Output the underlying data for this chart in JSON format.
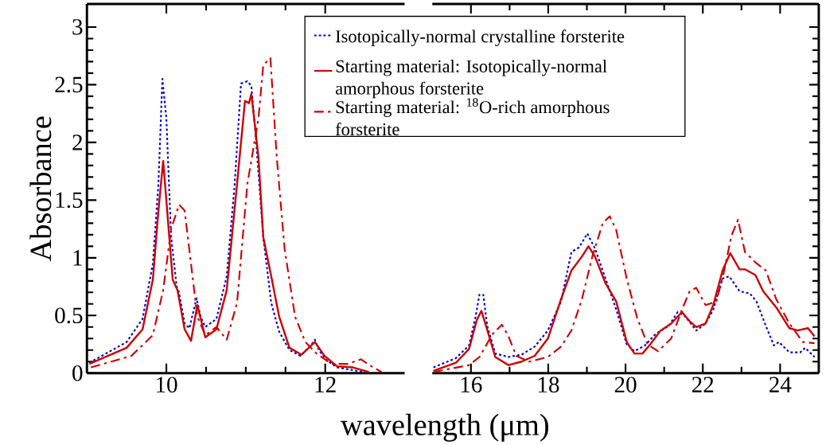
{
  "chart_data": [
    {
      "type": "line",
      "ylabel": "Absorbance",
      "xlim": [
        9,
        13
      ],
      "ylim": [
        0,
        3.2
      ],
      "xticks": [
        10,
        12
      ],
      "yticks": [
        0,
        0.5,
        1,
        1.5,
        2,
        2.5,
        3
      ],
      "series": [
        {
          "color": "#0000cc",
          "line_style": "dotted",
          "x": [
            9.03,
            9.5,
            9.7,
            9.83,
            9.9,
            9.95,
            10.0,
            10.06,
            10.13,
            10.16,
            10.23,
            10.29,
            10.38,
            10.43,
            10.49,
            10.63,
            10.76,
            10.86,
            10.94,
            11.02,
            11.07,
            11.12,
            11.22,
            11.32,
            11.42,
            11.55,
            11.69,
            11.82,
            11.87,
            11.92,
            12.02,
            12.15,
            12.32,
            12.48
          ],
          "values": [
            0.09,
            0.27,
            0.47,
            0.95,
            1.64,
            2.55,
            2.21,
            1.18,
            0.75,
            0.7,
            0.43,
            0.39,
            0.65,
            0.49,
            0.4,
            0.47,
            0.84,
            1.64,
            2.51,
            2.53,
            2.49,
            2.1,
            1.18,
            0.61,
            0.36,
            0.2,
            0.15,
            0.24,
            0.29,
            0.2,
            0.11,
            0.05,
            0.03,
            0.01
          ]
        },
        {
          "color": "#cc0000",
          "line_style": "solid",
          "x": [
            9.03,
            9.5,
            9.7,
            9.83,
            9.9,
            9.96,
            10.01,
            10.08,
            10.14,
            10.23,
            10.31,
            10.39,
            10.49,
            10.63,
            10.76,
            10.89,
            10.99,
            11.04,
            11.07,
            11.16,
            11.22,
            11.32,
            11.42,
            11.55,
            11.7,
            11.87,
            11.99,
            12.15,
            12.35,
            12.55
          ],
          "values": [
            0.08,
            0.22,
            0.38,
            0.81,
            1.41,
            1.84,
            1.41,
            0.81,
            0.72,
            0.38,
            0.28,
            0.59,
            0.31,
            0.38,
            0.72,
            1.64,
            2.36,
            2.34,
            2.42,
            1.87,
            1.18,
            0.84,
            0.49,
            0.22,
            0.16,
            0.27,
            0.15,
            0.06,
            0.05,
            0.01
          ]
        },
        {
          "color": "#cc0000",
          "line_style": "dashed",
          "x": [
            9.05,
            9.56,
            9.83,
            9.96,
            10.06,
            10.16,
            10.23,
            10.31,
            10.39,
            10.49,
            10.63,
            10.76,
            10.89,
            11.02,
            11.16,
            11.22,
            11.31,
            11.39,
            11.49,
            11.62,
            11.75,
            11.89,
            12.08,
            12.28,
            12.45,
            12.58,
            12.71
          ],
          "values": [
            0.05,
            0.15,
            0.33,
            0.72,
            1.25,
            1.46,
            1.41,
            0.95,
            0.49,
            0.33,
            0.4,
            0.29,
            0.61,
            1.64,
            2.21,
            2.67,
            2.73,
            1.87,
            1.07,
            0.49,
            0.27,
            0.17,
            0.08,
            0.08,
            0.12,
            0.06,
            0.01
          ]
        }
      ]
    },
    {
      "type": "line",
      "xlabel": "wavelength (μm)",
      "xlim": [
        15,
        25
      ],
      "ylim": [
        0,
        3.2
      ],
      "xticks": [
        16,
        18,
        20,
        22,
        24
      ],
      "yticks": [
        0,
        0.5,
        1,
        1.5,
        2,
        2.5,
        3
      ],
      "tick_labels": "x",
      "legend": "top left",
      "series": [
        {
          "name": "Isotopically-normal crystalline forsterite",
          "color": "#0000cc",
          "line_style": "dotted",
          "x": [
            15.03,
            15.61,
            15.95,
            16.12,
            16.22,
            16.32,
            16.42,
            16.63,
            16.97,
            17.31,
            17.65,
            17.99,
            18.33,
            18.6,
            18.8,
            19.01,
            19.21,
            19.48,
            19.76,
            20.03,
            20.23,
            20.5,
            20.78,
            21.12,
            21.35,
            21.52,
            21.83,
            22.07,
            22.27,
            22.51,
            22.68,
            22.95,
            23.22,
            23.39,
            23.63,
            23.84,
            23.97,
            24.24,
            24.52,
            24.65,
            24.89
          ],
          "values": [
            0.05,
            0.13,
            0.24,
            0.49,
            0.68,
            0.68,
            0.41,
            0.17,
            0.14,
            0.16,
            0.23,
            0.37,
            0.62,
            1.05,
            1.09,
            1.21,
            1.08,
            0.82,
            0.55,
            0.25,
            0.19,
            0.24,
            0.34,
            0.41,
            0.53,
            0.5,
            0.37,
            0.43,
            0.55,
            0.82,
            0.84,
            0.71,
            0.69,
            0.62,
            0.41,
            0.24,
            0.27,
            0.18,
            0.18,
            0.22,
            0.14
          ]
        },
        {
          "name": "Starting material: Isotopically-normal amorphous forsterite",
          "color": "#cc0000",
          "line_style": "solid",
          "x": [
            15.03,
            15.61,
            15.95,
            16.15,
            16.27,
            16.39,
            16.63,
            16.97,
            17.31,
            17.65,
            17.99,
            18.33,
            18.6,
            18.87,
            19.04,
            19.21,
            19.48,
            19.76,
            20.03,
            20.23,
            20.44,
            20.64,
            20.91,
            21.18,
            21.46,
            21.66,
            21.83,
            22.07,
            22.27,
            22.51,
            22.71,
            22.95,
            23.09,
            23.36,
            23.56,
            23.9,
            24.24,
            24.45,
            24.72,
            24.89
          ],
          "values": [
            0.02,
            0.09,
            0.21,
            0.46,
            0.54,
            0.41,
            0.14,
            0.07,
            0.1,
            0.15,
            0.3,
            0.64,
            0.89,
            1.01,
            1.1,
            1.01,
            0.78,
            0.62,
            0.27,
            0.17,
            0.17,
            0.25,
            0.37,
            0.43,
            0.53,
            0.45,
            0.4,
            0.43,
            0.59,
            0.89,
            1.04,
            0.9,
            0.9,
            0.85,
            0.71,
            0.57,
            0.39,
            0.37,
            0.39,
            0.32
          ]
        },
        {
          "name": "Starting material: $^{18}$O-rich amorphous forsterite",
          "color": "#cc0000",
          "line_style": "dashed",
          "x": [
            15.03,
            15.95,
            16.22,
            16.56,
            16.8,
            16.97,
            17.17,
            17.51,
            17.99,
            18.33,
            18.6,
            18.87,
            19.14,
            19.41,
            19.59,
            19.76,
            20.03,
            20.3,
            20.57,
            20.84,
            21.18,
            21.46,
            21.66,
            21.83,
            22.07,
            22.35,
            22.54,
            22.74,
            22.91,
            23.09,
            23.36,
            23.63,
            23.9,
            24.24,
            24.59,
            24.89
          ],
          "values": [
            0.01,
            0.07,
            0.14,
            0.34,
            0.42,
            0.32,
            0.15,
            0.1,
            0.14,
            0.23,
            0.37,
            0.64,
            1.01,
            1.3,
            1.36,
            1.24,
            0.82,
            0.48,
            0.25,
            0.19,
            0.3,
            0.55,
            0.71,
            0.74,
            0.59,
            0.62,
            0.87,
            1.19,
            1.33,
            1.05,
            0.96,
            0.89,
            0.64,
            0.43,
            0.27,
            0.26
          ]
        }
      ]
    }
  ]
}
